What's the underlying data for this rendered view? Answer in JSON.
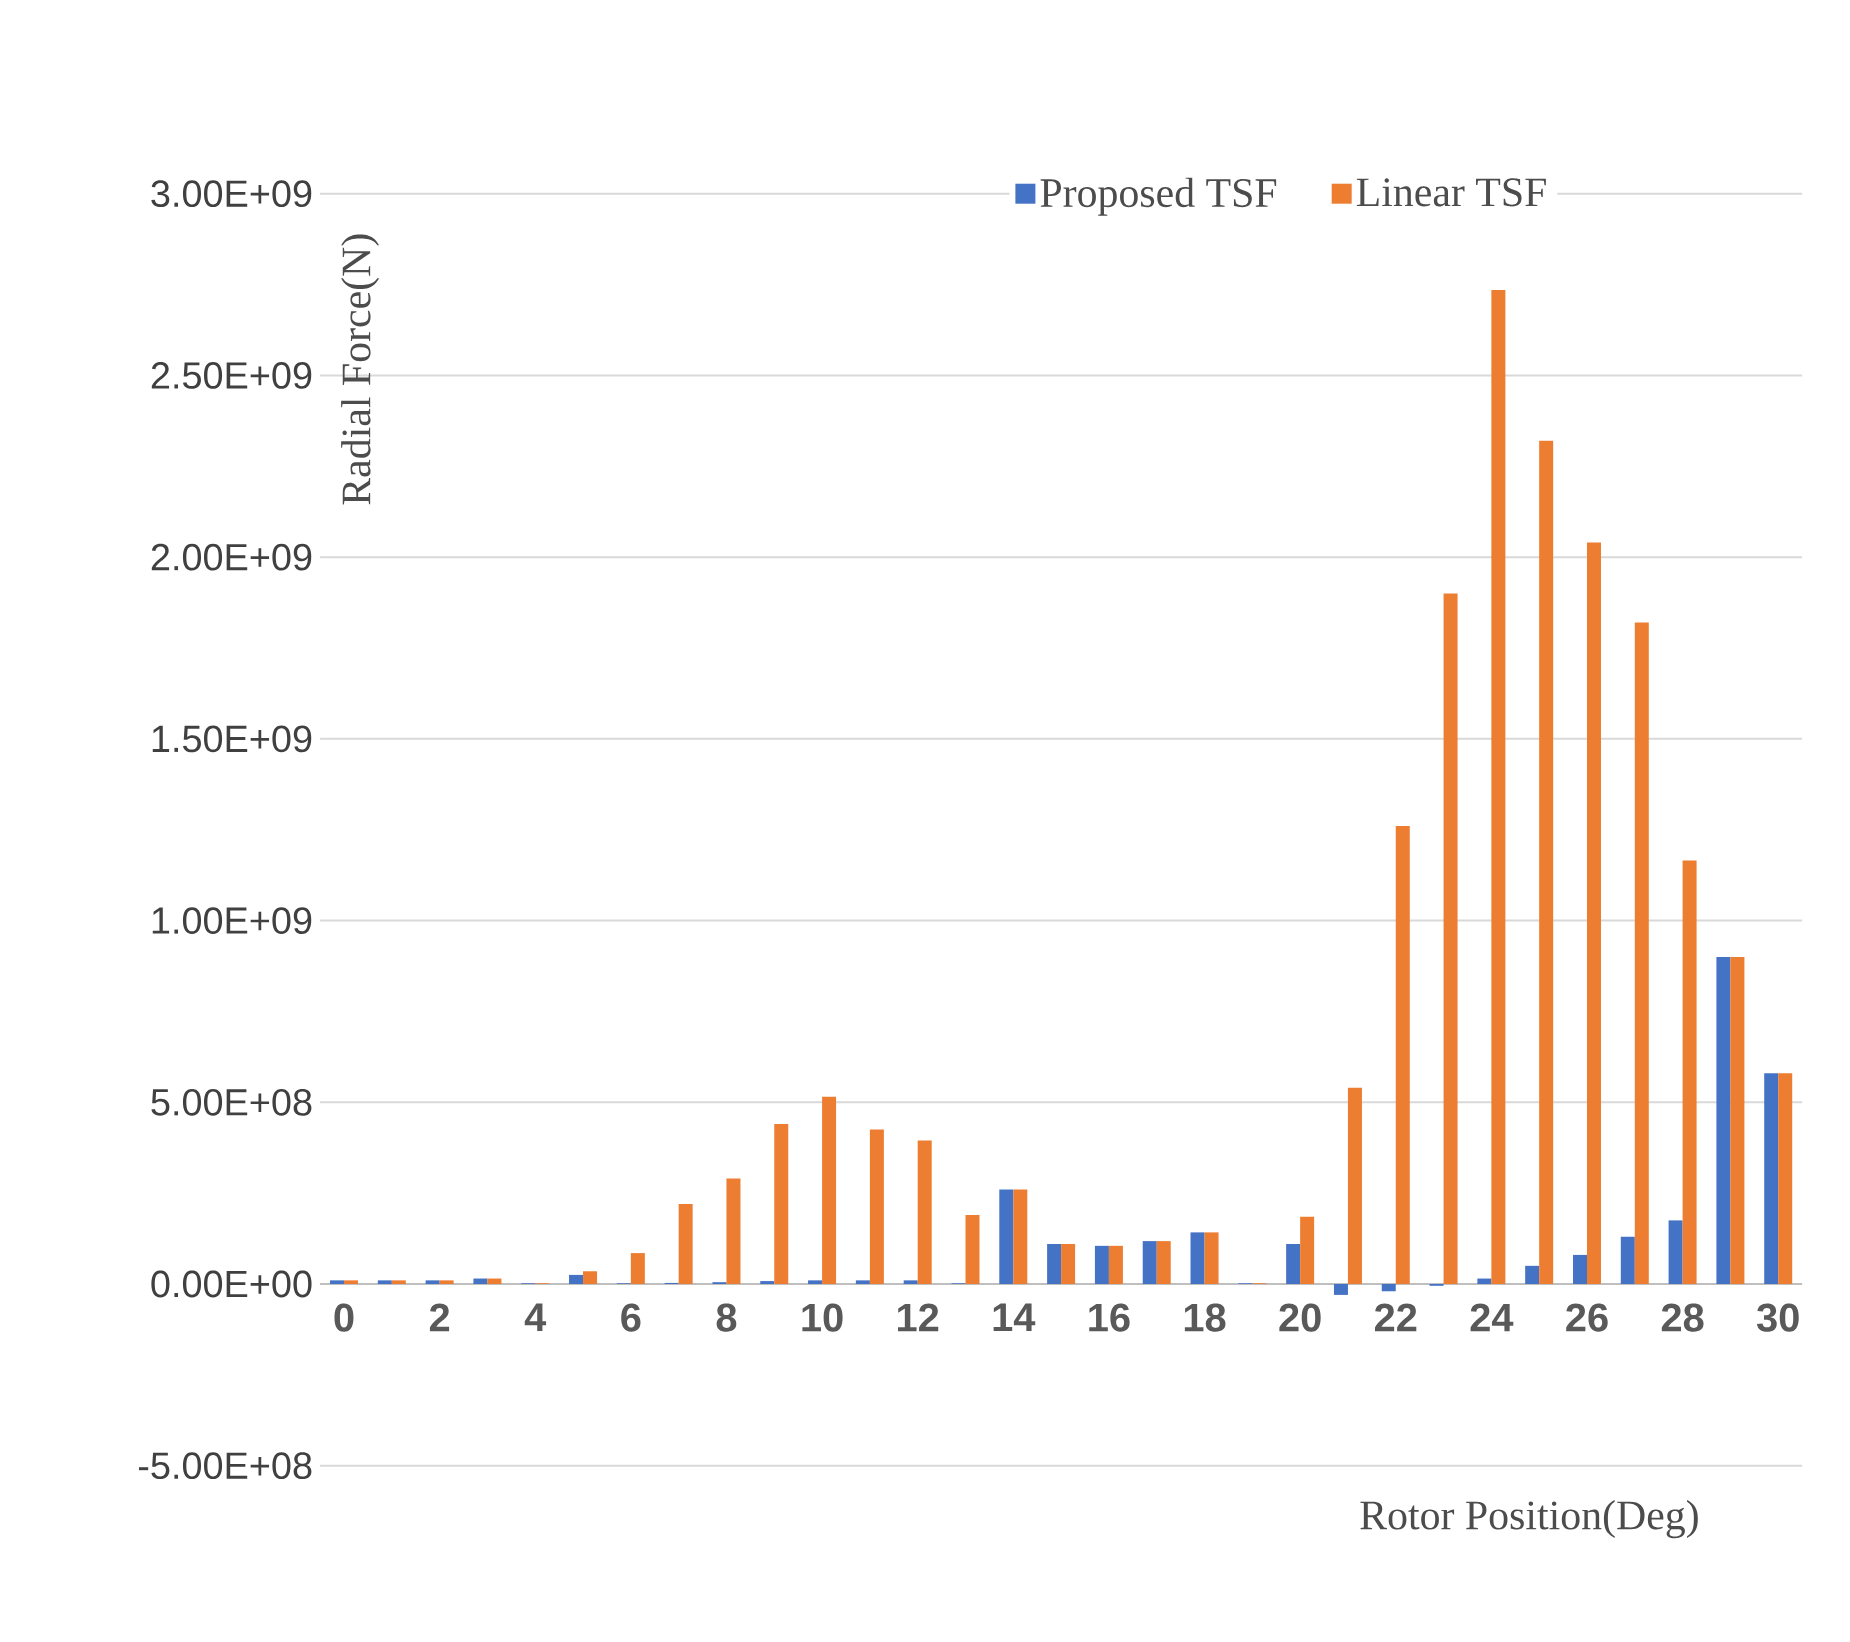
{
  "chart_data": {
    "type": "bar",
    "xlabel": "Rotor Position(Deg)",
    "ylabel": "Radial Force(N)",
    "categories": [
      "0",
      null,
      "2",
      null,
      "4",
      null,
      "6",
      null,
      "8",
      null,
      "10",
      null,
      "12",
      null,
      "14",
      null,
      "16",
      null,
      "18",
      null,
      "20",
      null,
      "22",
      null,
      "24",
      null,
      "26",
      null,
      "28",
      null,
      "30"
    ],
    "series": [
      {
        "name": "Proposed TSF",
        "color": "#4472c4",
        "values": [
          10000000.0,
          10000000.0,
          10000000.0,
          15000000.0,
          2000000.0,
          25000000.0,
          2000000.0,
          3000000.0,
          5000000.0,
          8000000.0,
          10000000.0,
          10000000.0,
          10000000.0,
          2000000.0,
          260000000.0,
          110000000.0,
          105000000.0,
          118000000.0,
          142000000.0,
          2000000.0,
          110000000.0,
          -30000000.0,
          -20000000.0,
          -5000000.0,
          15000000.0,
          50000000.0,
          80000000.0,
          130000000.0,
          175000000.0,
          900000000.0,
          580000000.0
        ]
      },
      {
        "name": "Linear TSF",
        "color": "#ed7d31",
        "values": [
          10000000.0,
          10000000.0,
          10000000.0,
          15000000.0,
          2000000.0,
          35000000.0,
          85000000.0,
          220000000.0,
          290000000.0,
          440000000.0,
          515000000.0,
          425000000.0,
          395000000.0,
          190000000.0,
          260000000.0,
          110000000.0,
          105000000.0,
          118000000.0,
          142000000.0,
          2000000.0,
          185000000.0,
          540000000.0,
          1260000000.0,
          1900000000.0,
          2735000000.0,
          2320000000.0,
          2040000000.0,
          1820000000.0,
          1165000000.0,
          900000000.0,
          580000000.0
        ]
      }
    ],
    "ylim": [
      -500000000.0,
      3000000000.0
    ],
    "yticks": [
      {
        "value": -500000000.0,
        "label": "-5.00E+08"
      },
      {
        "value": 0,
        "label": "0.00E+00"
      },
      {
        "value": 500000000.0,
        "label": "5.00E+08"
      },
      {
        "value": 1000000000.0,
        "label": "1.00E+09"
      },
      {
        "value": 1500000000.0,
        "label": "1.50E+09"
      },
      {
        "value": 2000000000.0,
        "label": "2.00E+09"
      },
      {
        "value": 2500000000.0,
        "label": "2.50E+09"
      },
      {
        "value": 3000000000.0,
        "label": "3.00E+09"
      }
    ],
    "grid": "y",
    "legend": "top right"
  }
}
